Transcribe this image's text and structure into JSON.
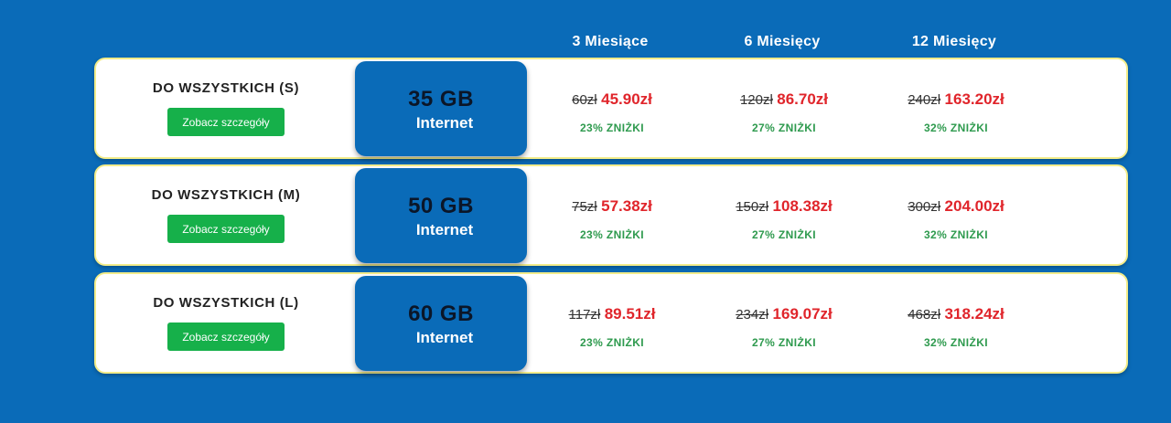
{
  "columns": [
    "3 Miesiące",
    "6 Miesięcy",
    "12 Miesięcy"
  ],
  "plans": [
    {
      "name": "DO WSZYSTKICH (S)",
      "button": "Zobacz szczegóły",
      "data": "35 GB",
      "data_label": "Internet",
      "prices": [
        {
          "old": "60zł",
          "new": "45.90zł",
          "discount": "23% ZNIŻKI"
        },
        {
          "old": "120zł",
          "new": "86.70zł",
          "discount": "27% ZNIŻKI"
        },
        {
          "old": "240zł",
          "new": "163.20zł",
          "discount": "32% ZNIŻKI"
        }
      ]
    },
    {
      "name": "DO WSZYSTKICH (M)",
      "button": "Zobacz szczegóły",
      "data": "50 GB",
      "data_label": "Internet",
      "prices": [
        {
          "old": "75zł",
          "new": "57.38zł",
          "discount": "23% ZNIŻKI"
        },
        {
          "old": "150zł",
          "new": "108.38zł",
          "discount": "27% ZNIŻKI"
        },
        {
          "old": "300zł",
          "new": "204.00zł",
          "discount": "32% ZNIŻKI"
        }
      ]
    },
    {
      "name": "DO WSZYSTKICH (L)",
      "button": "Zobacz szczegóły",
      "data": "60 GB",
      "data_label": "Internet",
      "prices": [
        {
          "old": "117zł",
          "new": "89.51zł",
          "discount": "23% ZNIŻKI"
        },
        {
          "old": "234zł",
          "new": "169.07zł",
          "discount": "27% ZNIŻKI"
        },
        {
          "old": "468zł",
          "new": "318.24zł",
          "discount": "32% ZNIŻKI"
        }
      ]
    }
  ],
  "colors": {
    "background": "#0a6bb8",
    "button": "#16b04a",
    "price": "#e0252b",
    "discount": "#2e9a4e",
    "border": "#f3ec8a"
  }
}
